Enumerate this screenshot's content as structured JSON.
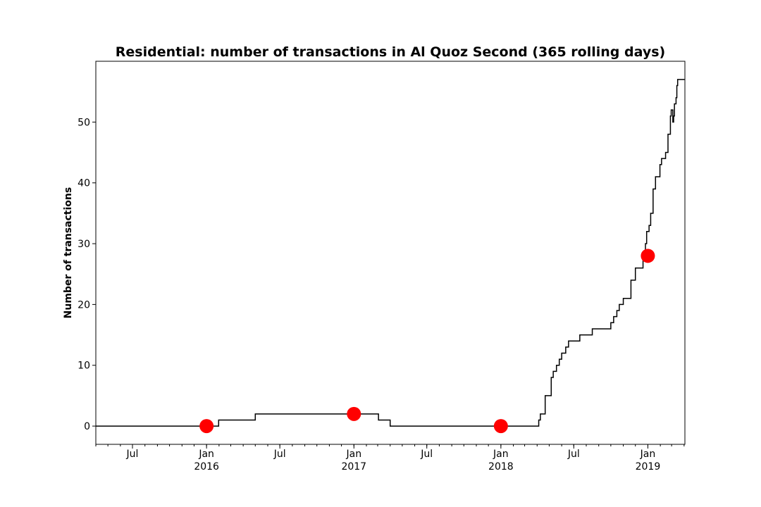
{
  "chart_data": {
    "type": "line",
    "title": "Residential: number of transactions in Al Quoz Second (365 rolling days)",
    "xlabel": "",
    "ylabel": "Number of transactions",
    "x_axis_type": "date",
    "xlim": [
      "2015-04-01",
      "2019-04-03"
    ],
    "ylim": [
      -3,
      60
    ],
    "y_ticks": [
      0,
      10,
      20,
      30,
      40,
      50
    ],
    "x_tick_labels": [
      {
        "date": "2015-07-01",
        "label": "Jul",
        "sub": ""
      },
      {
        "date": "2016-01-01",
        "label": "Jan",
        "sub": "2016"
      },
      {
        "date": "2016-07-01",
        "label": "Jul",
        "sub": ""
      },
      {
        "date": "2017-01-01",
        "label": "Jan",
        "sub": "2017"
      },
      {
        "date": "2017-07-01",
        "label": "Jul",
        "sub": ""
      },
      {
        "date": "2018-01-01",
        "label": "Jan",
        "sub": "2018"
      },
      {
        "date": "2018-07-01",
        "label": "Jul",
        "sub": ""
      },
      {
        "date": "2019-01-01",
        "label": "Jan",
        "sub": "2019"
      }
    ],
    "grid": false,
    "legend": "none",
    "colors": {
      "line": "#000000",
      "marker": "#ff0000"
    },
    "series": [
      {
        "x": [
          "2015-04-01",
          "2016-01-31",
          "2016-05-01",
          "2017-03-03",
          "2017-04-01",
          "2018-04-05",
          "2018-04-09",
          "2018-04-21",
          "2018-05-06",
          "2018-05-11",
          "2018-05-19",
          "2018-05-26",
          "2018-06-01",
          "2018-06-05",
          "2018-06-11",
          "2018-06-18",
          "2018-06-28",
          "2018-07-16",
          "2018-08-16",
          "2018-08-26",
          "2018-10-01",
          "2018-10-08",
          "2018-10-16",
          "2018-10-22",
          "2018-10-26",
          "2018-11-01",
          "2018-11-20",
          "2018-12-01",
          "2018-12-05",
          "2018-12-08",
          "2018-12-20",
          "2018-12-26",
          "2018-12-29",
          "2019-01-04",
          "2019-01-08",
          "2019-01-14",
          "2019-01-20",
          "2019-01-26",
          "2019-01-31",
          "2019-02-04",
          "2019-02-14",
          "2019-02-20",
          "2019-02-26",
          "2019-02-28",
          "2019-03-04",
          "2019-03-06",
          "2019-03-08",
          "2019-03-10",
          "2019-03-12",
          "2019-03-14",
          "2019-03-16",
          "2019-03-19",
          "2019-03-26",
          "2019-03-28",
          "2019-04-02"
        ],
        "values": [
          0,
          1,
          2,
          1,
          0,
          1,
          2,
          5,
          8,
          9,
          10,
          11,
          12,
          12,
          13,
          14,
          14,
          15,
          16,
          16,
          17,
          18,
          19,
          20,
          20,
          21,
          24,
          26,
          26,
          26,
          28,
          30,
          32,
          33,
          35,
          39,
          41,
          41,
          43,
          44,
          45,
          48,
          51,
          52,
          50,
          51,
          53,
          53,
          54,
          56,
          57,
          57,
          57,
          57,
          57
        ]
      }
    ],
    "markers": {
      "x": [
        "2016-01-01",
        "2017-01-01",
        "2018-01-01",
        "2019-01-01"
      ],
      "values": [
        0,
        2,
        0,
        28
      ]
    }
  }
}
